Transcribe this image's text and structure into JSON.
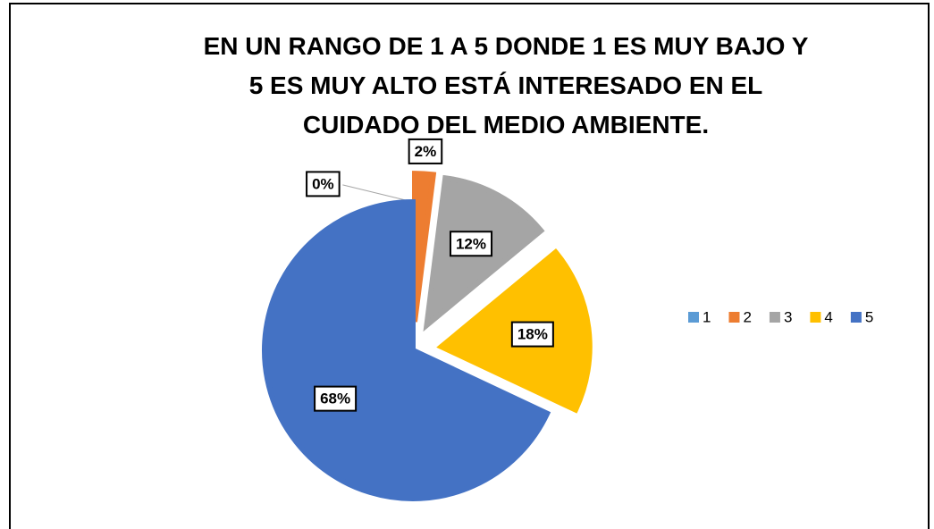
{
  "chart_data": {
    "type": "pie",
    "title": "EN UN RANGO DE 1 A 5 DONDE 1 ES MUY BAJO Y 5 ES MUY ALTO ESTÁ INTERESADO EN EL CUIDADO DEL MEDIO AMBIENTE.",
    "categories": [
      "1",
      "2",
      "3",
      "4",
      "5"
    ],
    "values": [
      0,
      2,
      12,
      18,
      68
    ],
    "value_labels": [
      "0%",
      "2%",
      "12%",
      "18%",
      "68%"
    ],
    "colors": [
      "#5b9bd5",
      "#ed7d31",
      "#a5a5a5",
      "#ffc000",
      "#4472c4"
    ],
    "legend": "right"
  }
}
